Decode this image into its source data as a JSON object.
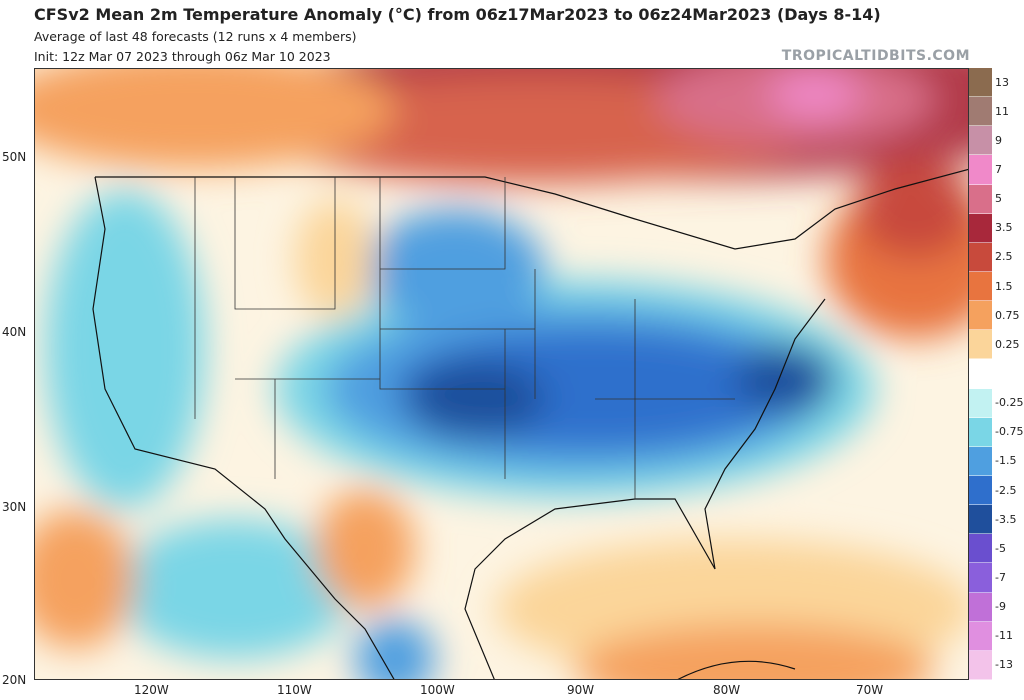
{
  "header": {
    "title": "CFSv2 Mean 2m Temperature Anomaly (°C) from 06z17Mar2023 to 06z24Mar2023 (Days 8-14)",
    "subtitle": "Average of last 48 forecasts (12 runs x 4 members)",
    "init": "Init: 12z Mar 07 2023 through 06z Mar 10 2023",
    "brand": "TROPICALTIDBITS.COM"
  },
  "axes": {
    "lat_labels": [
      "50N",
      "40N",
      "30N",
      "20N"
    ],
    "lon_labels": [
      "120W",
      "110W",
      "100W",
      "90W",
      "80W",
      "70W"
    ]
  },
  "legend": {
    "entries": [
      {
        "label": "13",
        "color": "#8b6b4f"
      },
      {
        "label": "11",
        "color": "#a07b72"
      },
      {
        "label": "9",
        "color": "#c790a7"
      },
      {
        "label": "7",
        "color": "#f089c9"
      },
      {
        "label": "5",
        "color": "#d96f8a"
      },
      {
        "label": "3.5",
        "color": "#a8283b"
      },
      {
        "label": "2.5",
        "color": "#c84a3c"
      },
      {
        "label": "1.5",
        "color": "#e8743f"
      },
      {
        "label": "0.75",
        "color": "#f5a15e"
      },
      {
        "label": "0.25",
        "color": "#fbd59a"
      },
      {
        "label": "",
        "color": "#ffffff"
      },
      {
        "label": "-0.25",
        "color": "#c2f2f2"
      },
      {
        "label": "-0.75",
        "color": "#7ad6e6"
      },
      {
        "label": "-1.5",
        "color": "#4f9fe0"
      },
      {
        "label": "-2.5",
        "color": "#2f6fcc"
      },
      {
        "label": "-3.5",
        "color": "#1f4f9c"
      },
      {
        "label": "-5",
        "color": "#6a4fcf"
      },
      {
        "label": "-7",
        "color": "#8a5fdc"
      },
      {
        "label": "-9",
        "color": "#c070d8"
      },
      {
        "label": "-11",
        "color": "#e08fe0"
      },
      {
        "label": "-13",
        "color": "#f3c3ea"
      }
    ]
  }
}
